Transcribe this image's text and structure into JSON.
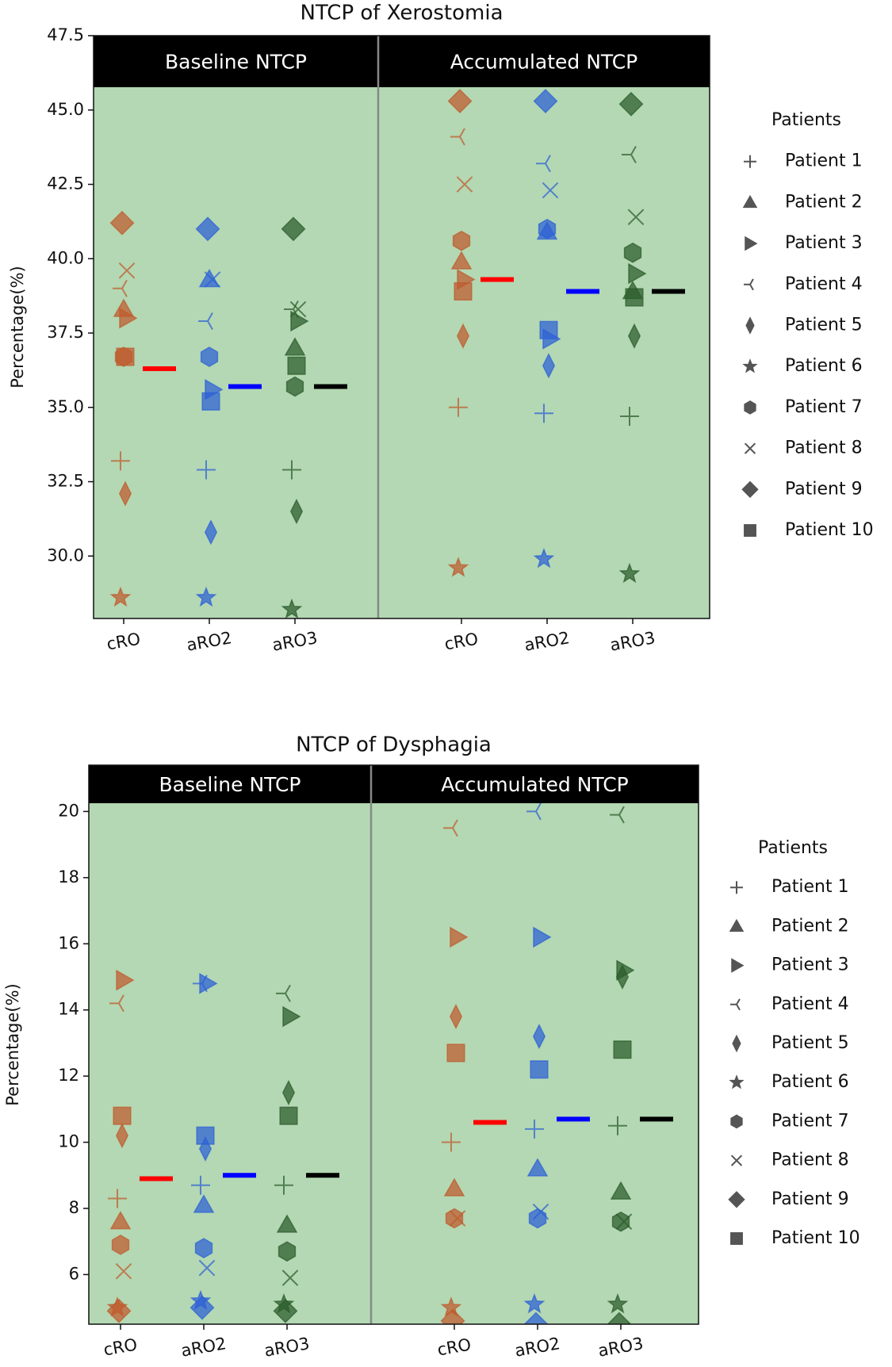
{
  "chart_data": [
    {
      "type": "strip",
      "title": "NTCP of Xerostomia",
      "ylabel": "Percentage(%)",
      "panels": [
        "Baseline NTCP",
        "Accumulated NTCP"
      ],
      "categories": [
        "cRO",
        "aRO2",
        "aRO3"
      ],
      "group_colors": [
        "#bf5a2c",
        "#2d5fd6",
        "#2b5c2b"
      ],
      "mean_colors": [
        "#ff0000",
        "#0000ff",
        "#000000"
      ],
      "background": "#b3d8b3",
      "legend_title": "Patients",
      "legend": "right",
      "ylim": [
        27.9,
        47.5
      ],
      "yticks": [
        {
          "value": 30,
          "label": "30.0"
        },
        32.5,
        {
          "value": 35,
          "label": "35.0"
        },
        37.5,
        {
          "value": 40,
          "label": "40.0"
        },
        42.5,
        {
          "value": 45,
          "label": "45.0"
        },
        47.5
      ],
      "series": [
        {
          "name": "Patient 1",
          "marker": "plus",
          "values": [
            33.2,
            32.9,
            32.9,
            35.0,
            34.8,
            34.7
          ]
        },
        {
          "name": "Patient 2",
          "marker": "triangle-up",
          "values": [
            38.3,
            39.3,
            37.0,
            39.9,
            40.9,
            38.9
          ]
        },
        {
          "name": "Patient 3",
          "marker": "triangle-right",
          "values": [
            38.0,
            35.6,
            37.9,
            39.3,
            37.3,
            39.5
          ]
        },
        {
          "name": "Patient 4",
          "marker": "tri-left",
          "values": [
            39.0,
            37.9,
            38.3,
            44.1,
            43.2,
            43.5
          ]
        },
        {
          "name": "Patient 5",
          "marker": "thin-diamond",
          "values": [
            32.1,
            30.8,
            31.5,
            37.4,
            36.4,
            37.4
          ]
        },
        {
          "name": "Patient 6",
          "marker": "star",
          "values": [
            28.6,
            28.6,
            28.2,
            29.6,
            29.9,
            29.4
          ]
        },
        {
          "name": "Patient 7",
          "marker": "hexagon",
          "values": [
            36.7,
            36.7,
            35.7,
            40.6,
            41.0,
            40.2
          ]
        },
        {
          "name": "Patient 8",
          "marker": "x",
          "values": [
            39.6,
            39.3,
            38.3,
            42.5,
            42.3,
            41.4
          ]
        },
        {
          "name": "Patient 9",
          "marker": "diamond",
          "values": [
            41.2,
            41.0,
            41.0,
            45.3,
            45.3,
            45.2
          ]
        },
        {
          "name": "Patient 10",
          "marker": "square",
          "values": [
            36.7,
            35.2,
            36.4,
            38.9,
            37.6,
            38.7
          ]
        }
      ],
      "means": [
        36.3,
        35.7,
        35.7,
        39.3,
        38.9,
        38.9
      ]
    },
    {
      "type": "strip",
      "title": "NTCP of Dysphagia",
      "ylabel": "Percentage(%)",
      "panels": [
        "Baseline NTCP",
        "Accumulated NTCP"
      ],
      "categories": [
        "cRO",
        "aRO2",
        "aRO3"
      ],
      "group_colors": [
        "#bf5a2c",
        "#2d5fd6",
        "#2b5c2b"
      ],
      "mean_colors": [
        "#ff0000",
        "#0000ff",
        "#000000"
      ],
      "background": "#b3d8b3",
      "legend_title": "Patients",
      "legend": "right",
      "ylim": [
        4.5,
        21.4
      ],
      "yticks": [
        6,
        8,
        10,
        12,
        14,
        16,
        18,
        20
      ],
      "series": [
        {
          "name": "Patient 1",
          "marker": "plus",
          "values": [
            8.3,
            8.7,
            8.7,
            10.0,
            10.4,
            10.5
          ]
        },
        {
          "name": "Patient 2",
          "marker": "triangle-up",
          "values": [
            7.6,
            8.1,
            7.5,
            8.6,
            9.2,
            8.5
          ]
        },
        {
          "name": "Patient 3",
          "marker": "triangle-right",
          "values": [
            14.9,
            14.8,
            13.8,
            16.2,
            16.2,
            15.2
          ]
        },
        {
          "name": "Patient 4",
          "marker": "tri-left",
          "values": [
            14.2,
            14.8,
            14.5,
            19.5,
            20.0,
            19.9
          ]
        },
        {
          "name": "Patient 5",
          "marker": "thin-diamond",
          "values": [
            10.2,
            9.8,
            11.5,
            13.8,
            13.2,
            15.0
          ]
        },
        {
          "name": "Patient 6",
          "marker": "star",
          "values": [
            5.0,
            5.2,
            5.1,
            5.0,
            5.1,
            5.1
          ]
        },
        {
          "name": "Patient 7",
          "marker": "hexagon",
          "values": [
            6.9,
            6.8,
            6.7,
            7.7,
            7.7,
            7.6
          ]
        },
        {
          "name": "Patient 8",
          "marker": "x",
          "values": [
            6.1,
            6.2,
            5.9,
            7.7,
            7.9,
            7.6
          ]
        },
        {
          "name": "Patient 9",
          "marker": "diamond",
          "values": [
            4.9,
            5.0,
            4.9,
            4.6,
            4.5,
            4.5
          ]
        },
        {
          "name": "Patient 10",
          "marker": "square",
          "values": [
            10.8,
            10.2,
            10.8,
            12.7,
            12.2,
            12.8
          ]
        }
      ],
      "means": [
        8.9,
        9.0,
        9.0,
        10.6,
        10.7,
        10.7
      ]
    }
  ]
}
